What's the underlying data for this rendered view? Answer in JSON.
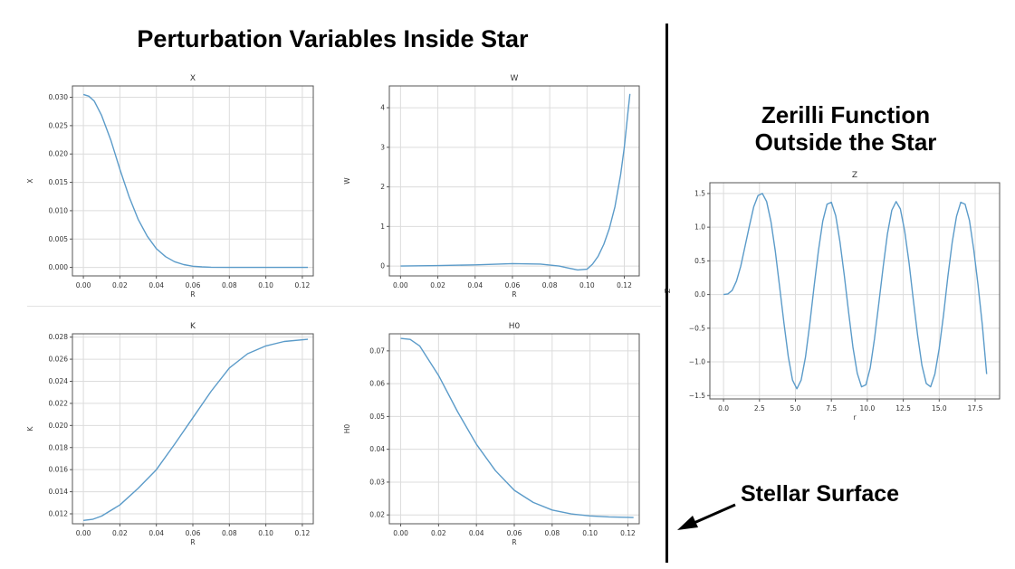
{
  "headings": {
    "main_title": "Perturbation Variables Inside Star",
    "right_title_line1": "Zerilli Function",
    "right_title_line2": "Outside the Star",
    "surface_label": "Stellar Surface"
  },
  "colors": {
    "line": "#5b9bc9",
    "grid": "#dcdcdc",
    "axis": "#555555",
    "divider": "#000000"
  },
  "chart_data": [
    {
      "type": "line",
      "title": "X",
      "xlabel": "R",
      "ylabel": "X",
      "xlim": [
        -0.006,
        0.126
      ],
      "ylim": [
        -0.0015,
        0.032
      ],
      "xticks": [
        0.0,
        0.02,
        0.04,
        0.06,
        0.08,
        0.1,
        0.12
      ],
      "xtick_labels": [
        "0.00",
        "0.02",
        "0.04",
        "0.06",
        "0.08",
        "0.10",
        "0.12"
      ],
      "yticks": [
        0.0,
        0.005,
        0.01,
        0.015,
        0.02,
        0.025,
        0.03
      ],
      "ytick_labels": [
        "0.000",
        "0.005",
        "0.010",
        "0.015",
        "0.020",
        "0.025",
        "0.030"
      ],
      "series": [
        {
          "x": [
            0.0,
            0.003,
            0.006,
            0.01,
            0.015,
            0.02,
            0.025,
            0.03,
            0.035,
            0.04,
            0.045,
            0.05,
            0.055,
            0.06,
            0.065,
            0.07,
            0.08,
            0.09,
            0.1,
            0.11,
            0.123
          ],
          "y": [
            0.0305,
            0.0302,
            0.0293,
            0.0268,
            0.0225,
            0.0173,
            0.0125,
            0.0085,
            0.0055,
            0.0033,
            0.0019,
            0.001,
            0.0005,
            0.0002,
            0.0001,
            3e-05,
            0.0,
            0.0,
            0.0,
            0.0,
            0.0
          ]
        }
      ]
    },
    {
      "type": "line",
      "title": "W",
      "xlabel": "R",
      "ylabel": "W",
      "xlim": [
        -0.006,
        0.128
      ],
      "ylim": [
        -0.25,
        4.55
      ],
      "xticks": [
        0.0,
        0.02,
        0.04,
        0.06,
        0.08,
        0.1,
        0.12
      ],
      "xtick_labels": [
        "0.00",
        "0.02",
        "0.04",
        "0.06",
        "0.08",
        "0.10",
        "0.12"
      ],
      "yticks": [
        0,
        1,
        2,
        3,
        4
      ],
      "ytick_labels": [
        "0",
        "1",
        "2",
        "3",
        "4"
      ],
      "series": [
        {
          "x": [
            0.0,
            0.02,
            0.04,
            0.06,
            0.075,
            0.085,
            0.09,
            0.095,
            0.1,
            0.103,
            0.106,
            0.109,
            0.112,
            0.115,
            0.118,
            0.12,
            0.122,
            0.123
          ],
          "y": [
            0.0,
            0.01,
            0.03,
            0.06,
            0.05,
            0.0,
            -0.05,
            -0.1,
            -0.08,
            0.05,
            0.25,
            0.55,
            0.95,
            1.5,
            2.3,
            3.0,
            3.9,
            4.35
          ]
        }
      ]
    },
    {
      "type": "line",
      "title": "K",
      "xlabel": "R",
      "ylabel": "K",
      "xlim": [
        -0.006,
        0.126
      ],
      "ylim": [
        0.0111,
        0.0283
      ],
      "xticks": [
        0.0,
        0.02,
        0.04,
        0.06,
        0.08,
        0.1,
        0.12
      ],
      "xtick_labels": [
        "0.00",
        "0.02",
        "0.04",
        "0.06",
        "0.08",
        "0.10",
        "0.12"
      ],
      "yticks": [
        0.012,
        0.014,
        0.016,
        0.018,
        0.02,
        0.022,
        0.024,
        0.026,
        0.028
      ],
      "ytick_labels": [
        "0.012",
        "0.014",
        "0.016",
        "0.018",
        "0.020",
        "0.022",
        "0.024",
        "0.026",
        "0.028"
      ],
      "series": [
        {
          "x": [
            0.0,
            0.005,
            0.01,
            0.02,
            0.03,
            0.04,
            0.05,
            0.06,
            0.07,
            0.08,
            0.09,
            0.1,
            0.11,
            0.123
          ],
          "y": [
            0.0114,
            0.0115,
            0.0118,
            0.0128,
            0.0143,
            0.016,
            0.0183,
            0.0207,
            0.0231,
            0.0252,
            0.0265,
            0.0272,
            0.0276,
            0.0278
          ]
        }
      ]
    },
    {
      "type": "line",
      "title": "H0",
      "xlabel": "R",
      "ylabel": "H0",
      "xlim": [
        -0.006,
        0.126
      ],
      "ylim": [
        0.0173,
        0.0752
      ],
      "xticks": [
        0.0,
        0.02,
        0.04,
        0.06,
        0.08,
        0.1,
        0.12
      ],
      "xtick_labels": [
        "0.00",
        "0.02",
        "0.04",
        "0.06",
        "0.08",
        "0.10",
        "0.12"
      ],
      "yticks": [
        0.02,
        0.03,
        0.04,
        0.05,
        0.06,
        0.07
      ],
      "ytick_labels": [
        "0.02",
        "0.03",
        "0.04",
        "0.05",
        "0.06",
        "0.07"
      ],
      "series": [
        {
          "x": [
            0.0,
            0.005,
            0.01,
            0.02,
            0.03,
            0.04,
            0.05,
            0.06,
            0.07,
            0.08,
            0.09,
            0.1,
            0.11,
            0.123
          ],
          "y": [
            0.0738,
            0.0735,
            0.0715,
            0.0625,
            0.0515,
            0.0415,
            0.0335,
            0.0275,
            0.0238,
            0.0215,
            0.0203,
            0.0197,
            0.0194,
            0.0192
          ]
        }
      ]
    },
    {
      "type": "line",
      "title": "Z",
      "xlabel": "r",
      "ylabel": "Z",
      "xlim": [
        -0.95,
        19.2
      ],
      "ylim": [
        -1.55,
        1.66
      ],
      "xticks": [
        0.0,
        2.5,
        5.0,
        7.5,
        10.0,
        12.5,
        15.0,
        17.5
      ],
      "xtick_labels": [
        "0.0",
        "2.5",
        "5.0",
        "7.5",
        "10.0",
        "12.5",
        "15.0",
        "17.5"
      ],
      "yticks": [
        -1.5,
        -1.0,
        -0.5,
        0.0,
        0.5,
        1.0,
        1.5
      ],
      "ytick_labels": [
        "−1.5",
        "−1.0",
        "−0.5",
        "0.0",
        "0.5",
        "1.0",
        "1.5"
      ],
      "series": [
        {
          "x": [
            0.0,
            0.3,
            0.6,
            0.9,
            1.2,
            1.5,
            1.8,
            2.1,
            2.4,
            2.7,
            3.0,
            3.3,
            3.6,
            3.9,
            4.2,
            4.5,
            4.8,
            5.1,
            5.4,
            5.7,
            6.0,
            6.3,
            6.6,
            6.9,
            7.2,
            7.5,
            7.8,
            8.1,
            8.4,
            8.7,
            9.0,
            9.3,
            9.6,
            9.9,
            10.2,
            10.5,
            10.8,
            11.1,
            11.4,
            11.7,
            12.0,
            12.3,
            12.6,
            12.9,
            13.2,
            13.5,
            13.8,
            14.1,
            14.4,
            14.7,
            15.0,
            15.3,
            15.6,
            15.9,
            16.2,
            16.5,
            16.8,
            17.1,
            17.4,
            17.7,
            18.0,
            18.3
          ],
          "y": [
            0.0,
            0.01,
            0.06,
            0.2,
            0.42,
            0.72,
            1.02,
            1.3,
            1.47,
            1.5,
            1.38,
            1.08,
            0.64,
            0.12,
            -0.42,
            -0.92,
            -1.27,
            -1.4,
            -1.27,
            -0.93,
            -0.43,
            0.12,
            0.65,
            1.09,
            1.34,
            1.37,
            1.17,
            0.78,
            0.28,
            -0.27,
            -0.78,
            -1.17,
            -1.37,
            -1.34,
            -1.09,
            -0.66,
            -0.13,
            0.41,
            0.9,
            1.25,
            1.38,
            1.27,
            0.94,
            0.47,
            -0.08,
            -0.61,
            -1.05,
            -1.32,
            -1.37,
            -1.18,
            -0.8,
            -0.3,
            0.26,
            0.77,
            1.16,
            1.37,
            1.34,
            1.1,
            0.67,
            0.14,
            -0.45,
            -1.18
          ]
        }
      ]
    }
  ]
}
